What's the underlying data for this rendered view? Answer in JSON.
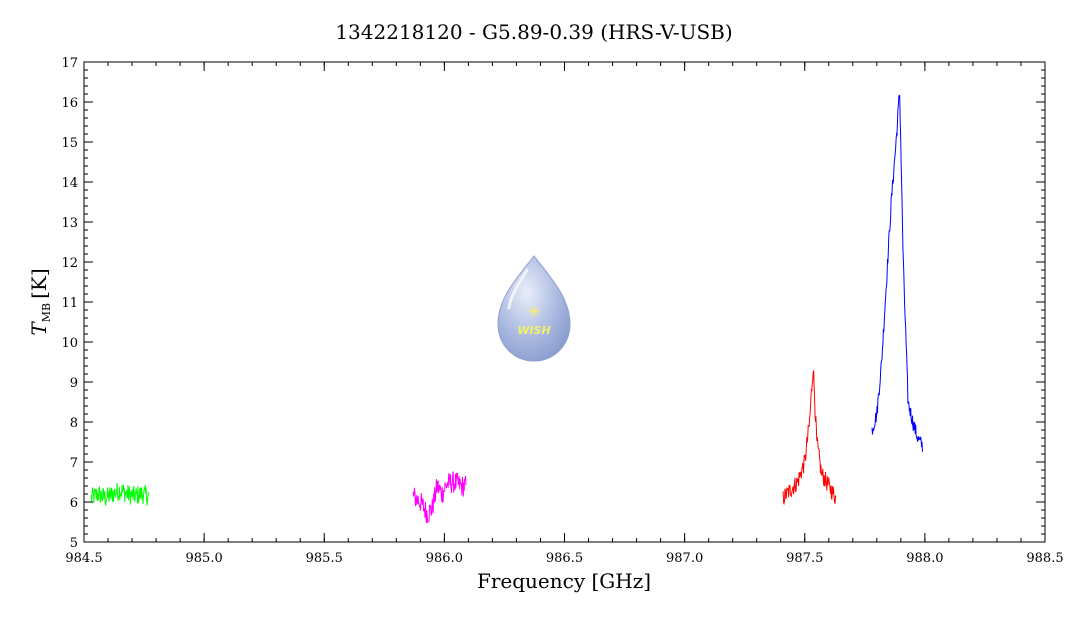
{
  "chart_data": {
    "type": "line",
    "title": "1342218120 - G5.89-0.39 (HRS-V-USB)",
    "xlabel": "Frequency [GHz]",
    "ylabel_main": "T",
    "ylabel_sub": "MB",
    "ylabel_unit": "[K]",
    "xlim": [
      984.5,
      988.5
    ],
    "ylim": [
      5,
      17
    ],
    "xticks": [
      "984.5",
      "985.0",
      "985.5",
      "986.0",
      "986.5",
      "987.0",
      "987.5",
      "988.0",
      "988.5"
    ],
    "yticks": [
      "5",
      "6",
      "7",
      "8",
      "9",
      "10",
      "11",
      "12",
      "13",
      "14",
      "15",
      "16",
      "17"
    ],
    "logo_text": "WISH",
    "grid": false,
    "series": [
      {
        "color": "#00ff00",
        "x": [
          984.53,
          984.56,
          984.59,
          984.62,
          984.65,
          984.68,
          984.71,
          984.74,
          984.77
        ],
        "y": [
          6.1,
          6.2,
          6.1,
          6.2,
          6.3,
          6.2,
          6.15,
          6.2,
          6.15
        ],
        "noise": 0.25
      },
      {
        "color": "#ff00ff",
        "x": [
          985.87,
          985.9,
          985.93,
          985.95,
          985.97,
          985.99,
          986.01,
          986.04,
          986.07,
          986.09
        ],
        "y": [
          6.15,
          6.0,
          5.7,
          5.85,
          6.4,
          6.2,
          6.45,
          6.5,
          6.4,
          6.4
        ],
        "noise": 0.28
      },
      {
        "color": "#ff0000",
        "x": [
          987.41,
          987.44,
          987.47,
          987.5,
          987.52,
          987.535,
          987.55,
          987.57,
          987.6,
          987.63
        ],
        "y": [
          6.1,
          6.3,
          6.5,
          7.0,
          8.0,
          9.4,
          7.5,
          6.7,
          6.4,
          6.1
        ],
        "noise": 0.22
      },
      {
        "color": "#0000ff",
        "x": [
          987.78,
          987.8,
          987.82,
          987.84,
          987.86,
          987.88,
          987.895,
          987.91,
          987.93,
          987.95,
          987.97,
          987.99
        ],
        "y": [
          7.8,
          8.2,
          9.5,
          11.5,
          13.5,
          15.0,
          16.3,
          12.0,
          8.5,
          8.0,
          7.6,
          7.4
        ],
        "noise": 0.18
      }
    ]
  }
}
